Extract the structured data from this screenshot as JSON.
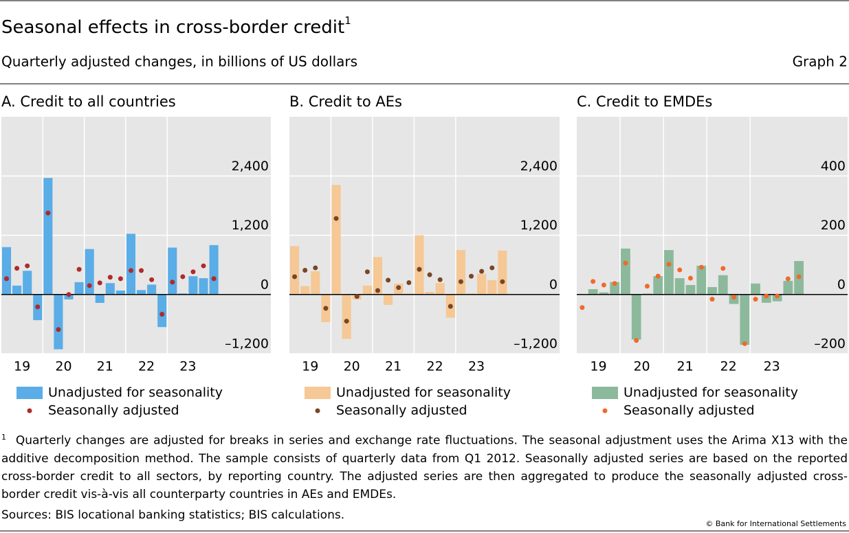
{
  "title": "Seasonal effects in cross-border credit",
  "title_note": "1",
  "subtitle": "Quarterly adjusted changes, in billions of US dollars",
  "graph_label": "Graph 2",
  "footnote": {
    "marker": "1",
    "text": "Quarterly changes are adjusted for breaks in series and exchange rate fluctuations. The seasonal adjustment uses the Arima X13 with the additive decomposition method. The sample consists of quarterly data from Q1 2012. Seasonally adjusted series are based on the reported cross-border credit to all sectors, by reporting country. The adjusted series are then aggregated to produce the seasonally adjusted cross-border credit vis-à-vis all counterparty countries in AEs and EMDEs."
  },
  "sources": "Sources: BIS locational banking statistics; BIS calculations.",
  "copyright": "© Bank for International Settlements",
  "chart_data": [
    {
      "type": "bar",
      "title": "A. Credit to all countries",
      "categories": [
        "19",
        null,
        null,
        null,
        "20",
        null,
        null,
        null,
        "21",
        null,
        null,
        null,
        "22",
        null,
        null,
        null,
        "23",
        null,
        null,
        null,
        null
      ],
      "series": [
        {
          "name": "Unadjusted for seasonality",
          "type": "bar",
          "color": "#5aade6",
          "values": [
            960,
            180,
            480,
            -520,
            2360,
            -1110,
            -100,
            250,
            920,
            -170,
            230,
            80,
            1230,
            90,
            200,
            -660,
            950,
            20,
            370,
            330,
            1000
          ]
        },
        {
          "name": "Seasonally adjusted",
          "type": "scatter",
          "color": "#b02a2a",
          "values": [
            320,
            530,
            580,
            -250,
            1650,
            -710,
            0,
            510,
            180,
            235,
            350,
            320,
            485,
            485,
            300,
            -400,
            250,
            360,
            460,
            580,
            320
          ]
        }
      ],
      "ylim": [
        -1200,
        3600
      ],
      "yticks": [
        {
          "value": -1200,
          "label": "–1,200"
        },
        0,
        {
          "value": 1200,
          "label": "1,200"
        },
        {
          "value": 2400,
          "label": "2,400"
        }
      ],
      "grid": true
    },
    {
      "type": "bar",
      "title": "B. Credit to AEs",
      "categories": [
        "19",
        null,
        null,
        null,
        "20",
        null,
        null,
        null,
        "21",
        null,
        null,
        null,
        "22",
        null,
        null,
        null,
        "23",
        null,
        null,
        null,
        null
      ],
      "series": [
        {
          "name": "Unadjusted for seasonality",
          "type": "bar",
          "color": "#f5c896",
          "values": [
            980,
            170,
            470,
            -560,
            2220,
            -900,
            -100,
            180,
            760,
            -210,
            220,
            20,
            1200,
            50,
            230,
            -470,
            900,
            20,
            420,
            290,
            890
          ]
        },
        {
          "name": "Seasonally adjusted",
          "type": "scatter",
          "color": "#7a4525",
          "values": [
            360,
            490,
            540,
            -280,
            1540,
            -540,
            -40,
            460,
            80,
            290,
            140,
            240,
            510,
            400,
            300,
            -240,
            260,
            370,
            470,
            540,
            260
          ]
        }
      ],
      "ylim": [
        -1200,
        3600
      ],
      "yticks": [
        {
          "value": -1200,
          "label": "–1,200"
        },
        0,
        {
          "value": 1200,
          "label": "1,200"
        },
        {
          "value": 2400,
          "label": "2,400"
        }
      ],
      "grid": true
    },
    {
      "type": "bar",
      "title": "C. Credit to EMDEs",
      "categories": [
        "19",
        null,
        null,
        null,
        "20",
        null,
        null,
        null,
        "21",
        null,
        null,
        null,
        "22",
        null,
        null,
        null,
        "23",
        null,
        null,
        null,
        null
      ],
      "series": [
        {
          "name": "Unadjusted for seasonality",
          "type": "bar",
          "color": "#8cb99b",
          "values": [
            0,
            18,
            7,
            42,
            155,
            -152,
            3,
            62,
            150,
            55,
            32,
            97,
            25,
            65,
            -32,
            -170,
            37,
            -28,
            -23,
            46,
            113
          ]
        },
        {
          "name": "Seasonally adjusted",
          "type": "scatter",
          "color": "#ef6a2c",
          "values": [
            -44,
            44,
            32,
            37,
            106,
            -155,
            28,
            62,
            102,
            83,
            55,
            92,
            -16,
            88,
            -9,
            -166,
            -16,
            -5,
            -5,
            53,
            60
          ]
        }
      ],
      "ylim": [
        -200,
        600
      ],
      "yticks": [
        {
          "value": -200,
          "label": "–200"
        },
        0,
        200,
        400
      ],
      "grid": true
    }
  ]
}
